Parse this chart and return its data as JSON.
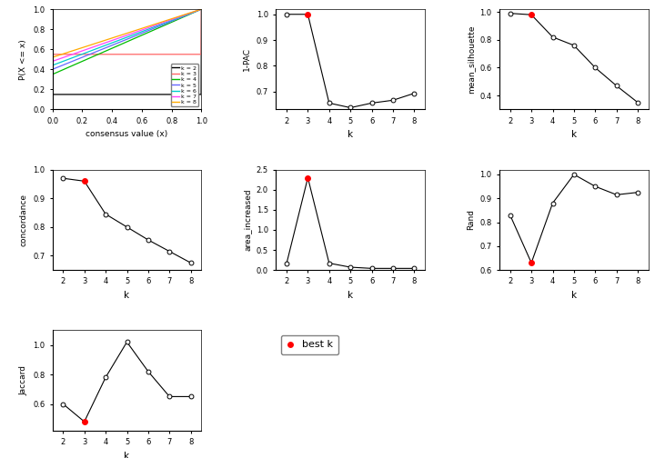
{
  "ecdf": {
    "xlabel": "consensus value (x)",
    "ylabel": "P(X <= x)",
    "k_colors": {
      "2": "#000000",
      "3": "#FF6666",
      "4": "#00BB00",
      "5": "#6666FF",
      "6": "#00CCCC",
      "7": "#FF44FF",
      "8": "#FFAA00"
    }
  },
  "pac": {
    "k": [
      2,
      3,
      4,
      5,
      6,
      7,
      8
    ],
    "values": [
      1.0,
      1.0,
      0.655,
      0.637,
      0.655,
      0.666,
      0.693
    ],
    "best_k": 3,
    "ylabel": "1-PAC",
    "xlabel": "k",
    "ylim": [
      0.63,
      1.02
    ]
  },
  "silhouette": {
    "k": [
      2,
      3,
      4,
      5,
      6,
      7,
      8
    ],
    "values": [
      0.99,
      0.98,
      0.82,
      0.76,
      0.6,
      0.47,
      0.35
    ],
    "best_k": 3,
    "ylabel": "mean_silhouette",
    "xlabel": "k",
    "ylim": [
      0.3,
      1.02
    ]
  },
  "concordance": {
    "k": [
      2,
      3,
      4,
      5,
      6,
      7,
      8
    ],
    "values": [
      0.97,
      0.96,
      0.845,
      0.8,
      0.755,
      0.715,
      0.675
    ],
    "best_k": 3,
    "ylabel": "concordance",
    "xlabel": "k",
    "ylim": [
      0.65,
      1.0
    ]
  },
  "area_increased": {
    "k": [
      2,
      3,
      4,
      5,
      6,
      7,
      8
    ],
    "values": [
      0.16,
      2.3,
      0.17,
      0.07,
      0.04,
      0.04,
      0.04
    ],
    "best_k": 3,
    "ylabel": "area_increased",
    "xlabel": "k",
    "ylim": [
      0.0,
      2.5
    ]
  },
  "rand": {
    "k": [
      2,
      3,
      4,
      5,
      6,
      7,
      8
    ],
    "values": [
      0.83,
      0.63,
      0.88,
      1.0,
      0.95,
      0.915,
      0.925
    ],
    "best_k": 3,
    "ylabel": "Rand",
    "xlabel": "k",
    "ylim": [
      0.6,
      1.02
    ]
  },
  "jaccard": {
    "k": [
      2,
      3,
      4,
      5,
      6,
      7,
      8
    ],
    "values": [
      0.6,
      0.48,
      0.78,
      1.02,
      0.82,
      0.65,
      0.65
    ],
    "best_k": 3,
    "ylabel": "Jaccard",
    "xlabel": "k",
    "ylim": [
      0.42,
      1.1
    ]
  },
  "legend_label": "best k",
  "best_k_color": "#FF0000",
  "bg_color": "#FFFFFF"
}
